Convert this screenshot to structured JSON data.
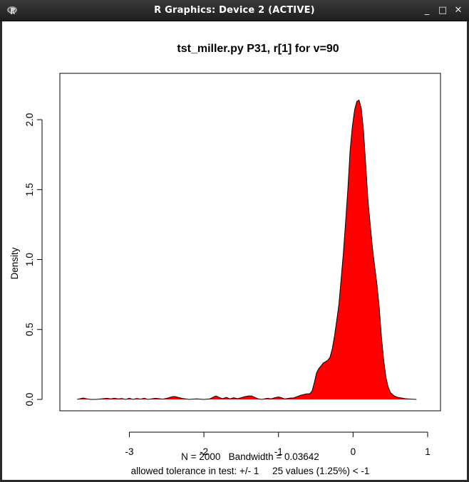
{
  "window": {
    "title": "R Graphics: Device 2 (ACTIVE)",
    "icon": "r-logo-icon",
    "controls": {
      "minimize": "_",
      "maximize": "□",
      "close": "✕"
    }
  },
  "chart_data": {
    "type": "area",
    "title": "tst_miller.py P31, r[1] for v=90",
    "xlabel": "N = 2000   Bandwidth = 0.03642",
    "subtitle": "allowed tolerance in test: +/- 1     25 values (1.25%) < -1",
    "ylabel": "Density",
    "xlim": [
      -3.75,
      1.0
    ],
    "ylim": [
      0,
      2.25
    ],
    "xticks": [
      -3,
      -2,
      -1,
      0,
      1
    ],
    "xtick_labels": [
      "-3",
      "-2",
      "-1",
      "0",
      "1"
    ],
    "yticks": [
      0.0,
      0.5,
      1.0,
      1.5,
      2.0
    ],
    "ytick_labels": [
      "0.0",
      "0.5",
      "1.0",
      "1.5",
      "2.0"
    ],
    "fill_color": "#ff0000",
    "line_color": "#000000",
    "grid": false,
    "series": [
      {
        "x": [
          -3.7,
          -3.62,
          -3.58,
          -3.52,
          -3.45,
          -3.35,
          -3.3,
          -3.25,
          -3.2,
          -3.15,
          -3.1,
          -3.05,
          -3.0,
          -2.95,
          -2.9,
          -2.85,
          -2.8,
          -2.75,
          -2.65,
          -2.55,
          -2.48,
          -2.42,
          -2.38,
          -2.33,
          -2.28,
          -2.2,
          -2.1,
          -2.0,
          -1.92,
          -1.88,
          -1.84,
          -1.8,
          -1.75,
          -1.7,
          -1.65,
          -1.6,
          -1.55,
          -1.5,
          -1.45,
          -1.4,
          -1.36,
          -1.32,
          -1.28,
          -1.22,
          -1.15,
          -1.1,
          -1.05,
          -1.0,
          -0.96,
          -0.92,
          -0.88,
          -0.84,
          -0.8,
          -0.75,
          -0.7,
          -0.66,
          -0.62,
          -0.58,
          -0.55,
          -0.52,
          -0.49,
          -0.46,
          -0.43,
          -0.4,
          -0.37,
          -0.34,
          -0.31,
          -0.28,
          -0.25,
          -0.22,
          -0.19,
          -0.16,
          -0.13,
          -0.1,
          -0.07,
          -0.04,
          -0.01,
          0.02,
          0.05,
          0.08,
          0.11,
          0.14,
          0.17,
          0.2,
          0.23,
          0.26,
          0.29,
          0.32,
          0.35,
          0.38,
          0.41,
          0.44,
          0.47,
          0.5,
          0.55,
          0.6,
          0.65,
          0.7,
          0.78,
          0.85
        ],
        "y": [
          0.0,
          0.01,
          0.005,
          0.0,
          0.0,
          0.005,
          0.008,
          0.004,
          0.008,
          0.004,
          0.006,
          0.0,
          0.008,
          0.0,
          0.007,
          0.002,
          0.008,
          0.0,
          0.008,
          0.002,
          0.01,
          0.02,
          0.02,
          0.012,
          0.006,
          0.0,
          0.004,
          0.0,
          0.004,
          0.015,
          0.025,
          0.015,
          0.005,
          0.015,
          0.004,
          0.012,
          0.005,
          0.012,
          0.02,
          0.025,
          0.025,
          0.015,
          0.005,
          0.0,
          0.008,
          0.004,
          0.012,
          0.018,
          0.012,
          0.004,
          0.006,
          0.01,
          0.01,
          0.02,
          0.03,
          0.035,
          0.04,
          0.04,
          0.06,
          0.12,
          0.19,
          0.22,
          0.24,
          0.26,
          0.27,
          0.28,
          0.3,
          0.36,
          0.45,
          0.56,
          0.68,
          0.86,
          1.05,
          1.27,
          1.5,
          1.78,
          1.95,
          2.07,
          2.13,
          2.14,
          2.08,
          1.92,
          1.67,
          1.42,
          1.25,
          1.08,
          0.95,
          0.82,
          0.66,
          0.45,
          0.28,
          0.16,
          0.09,
          0.05,
          0.025,
          0.015,
          0.01,
          0.005,
          0.002,
          0.0
        ]
      }
    ]
  }
}
